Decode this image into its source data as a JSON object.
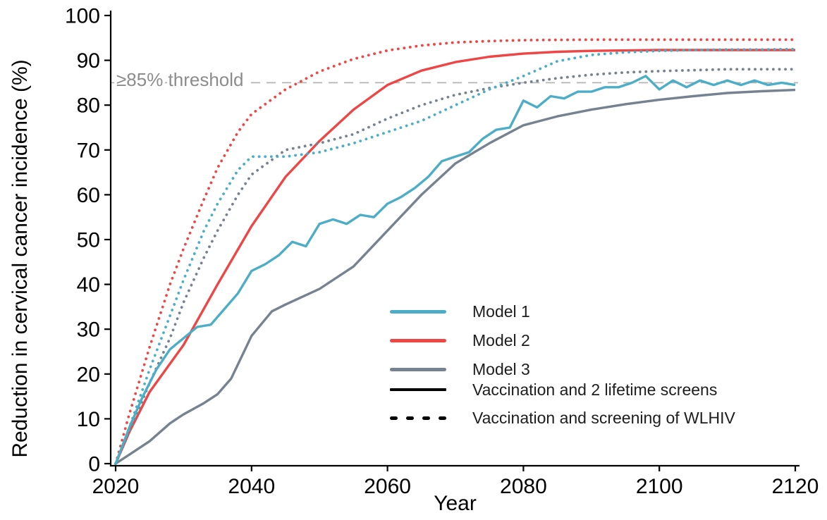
{
  "axes": {
    "x": {
      "label": "Year",
      "range": [
        2020,
        2120
      ],
      "ticks": [
        2020,
        2040,
        2060,
        2080,
        2100,
        2120
      ]
    },
    "y": {
      "label": "Reduction in cervical cancer incidence (%)",
      "range": [
        0,
        100
      ],
      "ticks": [
        0,
        10,
        20,
        30,
        40,
        50,
        60,
        70,
        80,
        90,
        100
      ]
    }
  },
  "threshold": {
    "value": 85,
    "label": "≥85% threshold",
    "line_color": "#b3b3b3",
    "label_color": "#8c8c8c"
  },
  "colors": {
    "model1": "#4BADC6",
    "model2": "#EE4545",
    "model3": "#76828F",
    "axis": "#000000",
    "background": "#ffffff"
  },
  "legend": {
    "items": [
      {
        "label": "Model 1",
        "swatch": "line",
        "color": "#4BADC6"
      },
      {
        "label": "Model 2",
        "swatch": "line",
        "color": "#EE4545"
      },
      {
        "label": "Model 3",
        "swatch": "line",
        "color": "#76828F"
      },
      {
        "label": "Vaccination and 2 lifetime screens",
        "swatch": "solid-line",
        "color": "#000000"
      },
      {
        "label": "Vaccination and screening of WLHIV",
        "swatch": "dotted-line",
        "color": "#000000"
      }
    ]
  },
  "chart_data": {
    "type": "line",
    "title": "",
    "xlabel": "Year",
    "ylabel": "Reduction in cervical cancer incidence (%)",
    "xlim": [
      2020,
      2120
    ],
    "ylim": [
      0,
      100
    ],
    "grid": false,
    "legend_position": "inside-lower-right",
    "annotations": [
      {
        "type": "hline",
        "y": 85,
        "style": "dashed",
        "label": "≥85% threshold"
      }
    ],
    "series": [
      {
        "name": "Model 2",
        "scenario": "Vaccination and 2 lifetime screens",
        "style": "solid",
        "color": "#EE4545",
        "x": [
          2020,
          2022,
          2025,
          2030,
          2035,
          2040,
          2045,
          2050,
          2055,
          2060,
          2065,
          2070,
          2075,
          2080,
          2085,
          2090,
          2095,
          2100,
          2105,
          2110,
          2115,
          2120
        ],
        "y": [
          0,
          7,
          16,
          26.5,
          40,
          53,
          64,
          72,
          79,
          84.5,
          87.7,
          89.6,
          90.8,
          91.5,
          91.9,
          92.1,
          92.2,
          92.3,
          92.3,
          92.3,
          92.3,
          92.3
        ]
      },
      {
        "name": "Model 3",
        "scenario": "Vaccination and 2 lifetime screens",
        "style": "solid",
        "color": "#76828F",
        "x": [
          2020,
          2022,
          2025,
          2028,
          2030,
          2033,
          2035,
          2037,
          2040,
          2043,
          2045,
          2050,
          2055,
          2060,
          2065,
          2070,
          2075,
          2080,
          2085,
          2090,
          2095,
          2100,
          2105,
          2110,
          2115,
          2120
        ],
        "y": [
          0,
          2,
          5,
          9,
          11,
          13.5,
          15.5,
          19,
          28.5,
          34,
          35.5,
          39,
          44,
          52,
          60,
          67,
          71.5,
          75.5,
          77.5,
          79,
          80.2,
          81.2,
          82,
          82.7,
          83.1,
          83.4
        ]
      },
      {
        "name": "Model 2",
        "scenario": "Vaccination and screening of WLHIV",
        "style": "dotted",
        "color": "#EE4545",
        "x": [
          2020,
          2022,
          2025,
          2028,
          2030,
          2033,
          2035,
          2038,
          2040,
          2045,
          2050,
          2055,
          2060,
          2065,
          2070,
          2075,
          2080,
          2090,
          2100,
          2110,
          2120
        ],
        "y": [
          0,
          11,
          26,
          40,
          48,
          59,
          66,
          74,
          78,
          83.5,
          87.5,
          90.3,
          92.2,
          93.3,
          94,
          94.3,
          94.5,
          94.6,
          94.6,
          94.6,
          94.6
        ]
      },
      {
        "name": "Model 3",
        "scenario": "Vaccination and screening of WLHIV",
        "style": "dotted",
        "color": "#76828F",
        "x": [
          2020,
          2022,
          2025,
          2028,
          2030,
          2033,
          2035,
          2038,
          2040,
          2045,
          2050,
          2055,
          2060,
          2065,
          2070,
          2075,
          2080,
          2085,
          2090,
          2095,
          2100,
          2105,
          2110,
          2115,
          2120
        ],
        "y": [
          0,
          7,
          18,
          28,
          36,
          46,
          52,
          60,
          64.5,
          70,
          71.5,
          73.5,
          77,
          80,
          82.3,
          83.8,
          85,
          86,
          86.8,
          87.3,
          87.6,
          87.8,
          88,
          88,
          88
        ]
      },
      {
        "name": "Model 1",
        "scenario": "Vaccination and screening of WLHIV",
        "style": "dotted",
        "color": "#4BADC6",
        "x": [
          2020,
          2022,
          2025,
          2028,
          2030,
          2033,
          2035,
          2038,
          2040,
          2045,
          2050,
          2055,
          2060,
          2065,
          2070,
          2075,
          2080,
          2085,
          2090,
          2095,
          2100,
          2105,
          2110,
          2115,
          2120
        ],
        "y": [
          0,
          8,
          21,
          33,
          41,
          52,
          58,
          65.5,
          68.5,
          68.5,
          69.5,
          71.5,
          74,
          76.5,
          80,
          83.5,
          86.5,
          89.8,
          91.2,
          91.8,
          92.1,
          92.3,
          92.4,
          92.4,
          92.5
        ]
      },
      {
        "name": "Model 1",
        "scenario": "Vaccination and 2 lifetime screens",
        "style": "solid",
        "color": "#4BADC6",
        "x": [
          2020,
          2022,
          2024,
          2026,
          2028,
          2030,
          2032,
          2034,
          2036,
          2038,
          2040,
          2042,
          2044,
          2046,
          2048,
          2050,
          2052,
          2054,
          2056,
          2058,
          2060,
          2062,
          2064,
          2066,
          2068,
          2070,
          2072,
          2074,
          2076,
          2078,
          2080,
          2082,
          2084,
          2086,
          2088,
          2090,
          2092,
          2094,
          2096,
          2098,
          2100,
          2102,
          2104,
          2106,
          2108,
          2110,
          2112,
          2114,
          2116,
          2118,
          2120
        ],
        "y": [
          0,
          8,
          15,
          21,
          25.5,
          28,
          30.5,
          31,
          34.5,
          38,
          43,
          44.5,
          46.5,
          49.5,
          48.5,
          53.5,
          54.5,
          53.5,
          55.5,
          55,
          58,
          59.5,
          61.5,
          64,
          67.5,
          68.5,
          69.5,
          72.5,
          74.5,
          75,
          81,
          79.5,
          82,
          81.5,
          83,
          83,
          84,
          84,
          85,
          86.5,
          83.5,
          85.5,
          84,
          85.5,
          84.5,
          85.5,
          84.5,
          85.5,
          84.5,
          85,
          84.5
        ]
      }
    ]
  }
}
